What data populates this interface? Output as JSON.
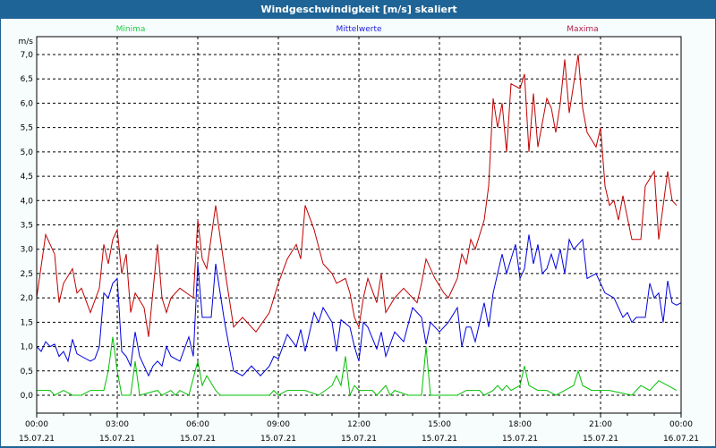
{
  "window": {
    "title": "Windgeschwindigkeit [m/s] skaliert"
  },
  "chart_data": {
    "type": "line",
    "title": "Windgeschwindigkeit [m/s] skaliert",
    "ylabel": "m/s",
    "xlabel": "",
    "ylim": [
      0,
      7
    ],
    "xlim_minutes": [
      0,
      1440
    ],
    "grid": true,
    "legend_placement": "top",
    "yticks": [
      "0,0",
      "0,5",
      "1,0",
      "1,5",
      "2,0",
      "2,5",
      "3,0",
      "3,5",
      "4,0",
      "4,5",
      "5,0",
      "5,5",
      "6,0",
      "6,5",
      "7,0"
    ],
    "xticks": [
      {
        "time": "00:00",
        "date": "15.07.21"
      },
      {
        "time": "03:00",
        "date": "15.07.21"
      },
      {
        "time": "06:00",
        "date": "15.07.21"
      },
      {
        "time": "09:00",
        "date": "15.07.21"
      },
      {
        "time": "12:00",
        "date": "15.07.21"
      },
      {
        "time": "15:00",
        "date": "15.07.21"
      },
      {
        "time": "18:00",
        "date": "15.07.21"
      },
      {
        "time": "21:00",
        "date": "15.07.21"
      },
      {
        "time": "00:00",
        "date": "16.07.21"
      }
    ],
    "x_unit": "minutes since 15.07.21 00:00",
    "series": [
      {
        "name": "Minima",
        "color": "#00c000",
        "legend_color": "#22cc44",
        "points": [
          [
            0,
            0.1
          ],
          [
            30,
            0.1
          ],
          [
            40,
            0
          ],
          [
            60,
            0.1
          ],
          [
            80,
            0
          ],
          [
            100,
            0
          ],
          [
            120,
            0.1
          ],
          [
            150,
            0.1
          ],
          [
            160,
            0.5
          ],
          [
            170,
            1.2
          ],
          [
            180,
            0.5
          ],
          [
            190,
            0
          ],
          [
            210,
            0
          ],
          [
            220,
            0.7
          ],
          [
            230,
            0
          ],
          [
            270,
            0.1
          ],
          [
            280,
            0
          ],
          [
            300,
            0.1
          ],
          [
            310,
            0
          ],
          [
            320,
            0.1
          ],
          [
            340,
            0
          ],
          [
            360,
            0.7
          ],
          [
            370,
            0.2
          ],
          [
            380,
            0.4
          ],
          [
            400,
            0.1
          ],
          [
            410,
            0
          ],
          [
            520,
            0
          ],
          [
            530,
            0.1
          ],
          [
            540,
            0
          ],
          [
            560,
            0.1
          ],
          [
            600,
            0.1
          ],
          [
            630,
            0
          ],
          [
            660,
            0.2
          ],
          [
            670,
            0.4
          ],
          [
            680,
            0.2
          ],
          [
            690,
            0.8
          ],
          [
            700,
            0
          ],
          [
            710,
            0.2
          ],
          [
            720,
            0.1
          ],
          [
            750,
            0.1
          ],
          [
            760,
            0
          ],
          [
            780,
            0.2
          ],
          [
            790,
            0
          ],
          [
            800,
            0.1
          ],
          [
            830,
            0
          ],
          [
            860,
            0
          ],
          [
            870,
            1.0
          ],
          [
            880,
            0
          ],
          [
            940,
            0
          ],
          [
            960,
            0.1
          ],
          [
            990,
            0.1
          ],
          [
            1000,
            0
          ],
          [
            1020,
            0.1
          ],
          [
            1030,
            0.2
          ],
          [
            1040,
            0.1
          ],
          [
            1050,
            0.2
          ],
          [
            1060,
            0.1
          ],
          [
            1080,
            0.2
          ],
          [
            1090,
            0.6
          ],
          [
            1100,
            0.2
          ],
          [
            1120,
            0.1
          ],
          [
            1140,
            0.1
          ],
          [
            1160,
            0
          ],
          [
            1180,
            0.1
          ],
          [
            1200,
            0.2
          ],
          [
            1210,
            0.5
          ],
          [
            1220,
            0.2
          ],
          [
            1240,
            0.1
          ],
          [
            1260,
            0.1
          ],
          [
            1280,
            0.1
          ],
          [
            1330,
            0
          ],
          [
            1350,
            0.2
          ],
          [
            1370,
            0.1
          ],
          [
            1390,
            0.3
          ],
          [
            1410,
            0.2
          ],
          [
            1430,
            0.1
          ]
        ]
      },
      {
        "name": "Mittelwerte",
        "color": "#0000e0",
        "legend_color": "#2020e0",
        "points": [
          [
            0,
            1.0
          ],
          [
            10,
            0.9
          ],
          [
            20,
            1.1
          ],
          [
            30,
            1.0
          ],
          [
            40,
            1.05
          ],
          [
            50,
            0.8
          ],
          [
            60,
            0.9
          ],
          [
            70,
            0.7
          ],
          [
            80,
            1.15
          ],
          [
            90,
            0.85
          ],
          [
            100,
            0.8
          ],
          [
            120,
            0.7
          ],
          [
            130,
            0.75
          ],
          [
            140,
            1.0
          ],
          [
            150,
            2.1
          ],
          [
            160,
            2.0
          ],
          [
            170,
            2.3
          ],
          [
            180,
            2.4
          ],
          [
            190,
            0.9
          ],
          [
            200,
            0.8
          ],
          [
            210,
            0.6
          ],
          [
            220,
            1.3
          ],
          [
            230,
            0.8
          ],
          [
            240,
            0.6
          ],
          [
            250,
            0.4
          ],
          [
            260,
            0.6
          ],
          [
            270,
            0.7
          ],
          [
            280,
            0.6
          ],
          [
            290,
            1.0
          ],
          [
            300,
            0.8
          ],
          [
            320,
            0.7
          ],
          [
            340,
            1.2
          ],
          [
            350,
            0.8
          ],
          [
            360,
            2.7
          ],
          [
            370,
            1.6
          ],
          [
            390,
            1.6
          ],
          [
            400,
            2.7
          ],
          [
            420,
            1.5
          ],
          [
            440,
            0.5
          ],
          [
            460,
            0.4
          ],
          [
            480,
            0.6
          ],
          [
            500,
            0.4
          ],
          [
            520,
            0.6
          ],
          [
            530,
            0.8
          ],
          [
            540,
            0.75
          ],
          [
            560,
            1.25
          ],
          [
            580,
            1.0
          ],
          [
            590,
            1.35
          ],
          [
            600,
            0.9
          ],
          [
            620,
            1.7
          ],
          [
            630,
            1.5
          ],
          [
            640,
            1.8
          ],
          [
            660,
            1.5
          ],
          [
            670,
            0.9
          ],
          [
            680,
            1.55
          ],
          [
            700,
            1.4
          ],
          [
            710,
            1.0
          ],
          [
            720,
            0.7
          ],
          [
            730,
            1.5
          ],
          [
            740,
            1.4
          ],
          [
            760,
            0.95
          ],
          [
            770,
            1.3
          ],
          [
            780,
            0.8
          ],
          [
            800,
            1.3
          ],
          [
            820,
            1.1
          ],
          [
            840,
            1.8
          ],
          [
            860,
            1.6
          ],
          [
            870,
            1.05
          ],
          [
            880,
            1.5
          ],
          [
            900,
            1.3
          ],
          [
            920,
            1.5
          ],
          [
            940,
            1.8
          ],
          [
            950,
            1.0
          ],
          [
            960,
            1.4
          ],
          [
            970,
            1.4
          ],
          [
            980,
            1.1
          ],
          [
            990,
            1.5
          ],
          [
            1000,
            1.9
          ],
          [
            1010,
            1.4
          ],
          [
            1020,
            2.1
          ],
          [
            1030,
            2.5
          ],
          [
            1040,
            2.9
          ],
          [
            1050,
            2.5
          ],
          [
            1060,
            2.8
          ],
          [
            1070,
            3.1
          ],
          [
            1080,
            2.4
          ],
          [
            1090,
            2.6
          ],
          [
            1100,
            3.3
          ],
          [
            1110,
            2.7
          ],
          [
            1120,
            3.1
          ],
          [
            1130,
            2.5
          ],
          [
            1140,
            2.6
          ],
          [
            1150,
            2.9
          ],
          [
            1160,
            2.6
          ],
          [
            1170,
            3.0
          ],
          [
            1180,
            2.5
          ],
          [
            1190,
            3.2
          ],
          [
            1200,
            3.0
          ],
          [
            1210,
            3.1
          ],
          [
            1220,
            3.2
          ],
          [
            1230,
            2.4
          ],
          [
            1250,
            2.5
          ],
          [
            1260,
            2.3
          ],
          [
            1270,
            2.1
          ],
          [
            1290,
            2.0
          ],
          [
            1300,
            1.8
          ],
          [
            1310,
            1.6
          ],
          [
            1320,
            1.7
          ],
          [
            1330,
            1.5
          ],
          [
            1340,
            1.6
          ],
          [
            1360,
            1.6
          ],
          [
            1370,
            2.3
          ],
          [
            1380,
            2.0
          ],
          [
            1390,
            2.1
          ],
          [
            1400,
            1.5
          ],
          [
            1410,
            2.35
          ],
          [
            1420,
            1.9
          ],
          [
            1430,
            1.85
          ],
          [
            1440,
            1.9
          ]
        ]
      },
      {
        "name": "Maxima",
        "color": "#c00000",
        "legend_color": "#b0204a",
        "points": [
          [
            0,
            2.0
          ],
          [
            20,
            3.3
          ],
          [
            40,
            2.9
          ],
          [
            50,
            1.9
          ],
          [
            60,
            2.3
          ],
          [
            80,
            2.6
          ],
          [
            90,
            2.1
          ],
          [
            100,
            2.2
          ],
          [
            120,
            1.7
          ],
          [
            140,
            2.2
          ],
          [
            150,
            3.1
          ],
          [
            160,
            2.7
          ],
          [
            170,
            3.2
          ],
          [
            180,
            3.4
          ],
          [
            190,
            2.5
          ],
          [
            200,
            2.9
          ],
          [
            210,
            1.7
          ],
          [
            220,
            2.1
          ],
          [
            240,
            1.8
          ],
          [
            250,
            1.2
          ],
          [
            270,
            3.1
          ],
          [
            280,
            2.0
          ],
          [
            290,
            1.7
          ],
          [
            300,
            2.0
          ],
          [
            320,
            2.2
          ],
          [
            350,
            2.0
          ],
          [
            360,
            3.6
          ],
          [
            370,
            2.8
          ],
          [
            380,
            2.6
          ],
          [
            400,
            3.9
          ],
          [
            420,
            2.6
          ],
          [
            430,
            2.0
          ],
          [
            440,
            1.4
          ],
          [
            460,
            1.6
          ],
          [
            490,
            1.3
          ],
          [
            520,
            1.7
          ],
          [
            540,
            2.3
          ],
          [
            560,
            2.8
          ],
          [
            580,
            3.1
          ],
          [
            590,
            2.8
          ],
          [
            600,
            3.9
          ],
          [
            620,
            3.4
          ],
          [
            640,
            2.7
          ],
          [
            660,
            2.5
          ],
          [
            670,
            2.3
          ],
          [
            690,
            2.4
          ],
          [
            700,
            2.1
          ],
          [
            710,
            1.6
          ],
          [
            720,
            1.4
          ],
          [
            730,
            2.0
          ],
          [
            740,
            2.4
          ],
          [
            760,
            1.9
          ],
          [
            770,
            2.5
          ],
          [
            780,
            1.7
          ],
          [
            800,
            2.0
          ],
          [
            820,
            2.2
          ],
          [
            850,
            1.9
          ],
          [
            860,
            2.3
          ],
          [
            870,
            2.8
          ],
          [
            890,
            2.4
          ],
          [
            910,
            2.1
          ],
          [
            920,
            2.0
          ],
          [
            940,
            2.4
          ],
          [
            950,
            2.9
          ],
          [
            960,
            2.7
          ],
          [
            970,
            3.2
          ],
          [
            980,
            3.0
          ],
          [
            1000,
            3.6
          ],
          [
            1010,
            4.3
          ],
          [
            1020,
            6.1
          ],
          [
            1030,
            5.5
          ],
          [
            1040,
            6.0
          ],
          [
            1050,
            5.0
          ],
          [
            1060,
            6.4
          ],
          [
            1080,
            6.3
          ],
          [
            1090,
            6.6
          ],
          [
            1100,
            5.0
          ],
          [
            1110,
            6.2
          ],
          [
            1120,
            5.1
          ],
          [
            1140,
            6.1
          ],
          [
            1150,
            5.9
          ],
          [
            1160,
            5.4
          ],
          [
            1170,
            6.0
          ],
          [
            1180,
            6.9
          ],
          [
            1190,
            5.8
          ],
          [
            1200,
            6.4
          ],
          [
            1210,
            7.0
          ],
          [
            1220,
            5.9
          ],
          [
            1230,
            5.4
          ],
          [
            1250,
            5.1
          ],
          [
            1260,
            5.5
          ],
          [
            1270,
            4.3
          ],
          [
            1280,
            3.9
          ],
          [
            1290,
            4.0
          ],
          [
            1300,
            3.6
          ],
          [
            1310,
            4.1
          ],
          [
            1330,
            3.2
          ],
          [
            1350,
            3.2
          ],
          [
            1360,
            4.3
          ],
          [
            1380,
            4.6
          ],
          [
            1390,
            3.2
          ],
          [
            1410,
            4.6
          ],
          [
            1420,
            4.0
          ],
          [
            1430,
            3.9
          ]
        ]
      }
    ]
  }
}
